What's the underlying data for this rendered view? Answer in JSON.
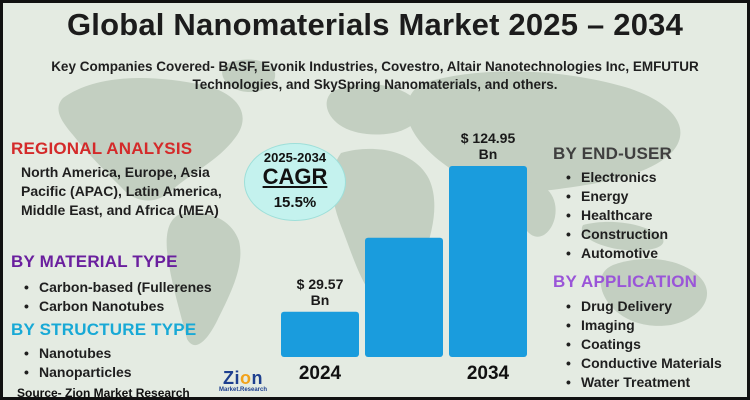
{
  "title": "Global Nanomaterials Market 2025 – 2034",
  "subtitle": "Key Companies Covered- BASF, Evonik Industries, Covestro, Altair Nanotechnologies Inc, EMFUTUR Technologies, and SkySpring Nanomaterials, and others.",
  "regional": {
    "heading": "REGIONAL ANALYSIS",
    "text": "North America, Europe, Asia Pacific (APAC), Latin America, Middle East, and Africa (MEA)"
  },
  "material": {
    "heading": "BY MATERIAL TYPE",
    "items": [
      "Carbon-based (Fullerenes",
      "Carbon Nanotubes"
    ]
  },
  "structure": {
    "heading": "BY STRUCTURE TYPE",
    "items": [
      "Nanotubes",
      "Nanoparticles"
    ]
  },
  "end_user": {
    "heading": "BY END-USER",
    "items": [
      "Electronics",
      "Energy",
      "Healthcare",
      "Construction",
      "Automotive"
    ]
  },
  "application": {
    "heading": "BY APPLICATION",
    "items": [
      "Drug Delivery",
      "Imaging",
      "Coatings",
      "Conductive Materials",
      "Water Treatment"
    ]
  },
  "cagr": {
    "years": "2025-2034",
    "label": "CAGR",
    "value": "15.5%"
  },
  "source": "Source- Zion Market Research",
  "logo": {
    "name_start": "Zi",
    "name_o": "o",
    "name_end": "n",
    "sub": "Market.Research"
  },
  "colors": {
    "bar": "#1a9cdd",
    "background": "#e4ebe2",
    "map": "#c3cfc1",
    "regional_heading": "#d42a2a",
    "material_heading": "#6a1f9e",
    "structure_heading": "#18a9d6",
    "application_heading": "#9a55d8",
    "cagr_circle": "#c4f2ee"
  },
  "chart_data": {
    "type": "bar",
    "title": "",
    "xlabel": "",
    "ylabel": "",
    "ylim": [
      0,
      140
    ],
    "categories": [
      "2024",
      "",
      "2034"
    ],
    "values": [
      29.57,
      78,
      124.95
    ],
    "data_labels": [
      "$ 29.57\nBn",
      "",
      "$ 124.95\nBn"
    ],
    "tick_labels": [
      "2024",
      "2034"
    ]
  }
}
